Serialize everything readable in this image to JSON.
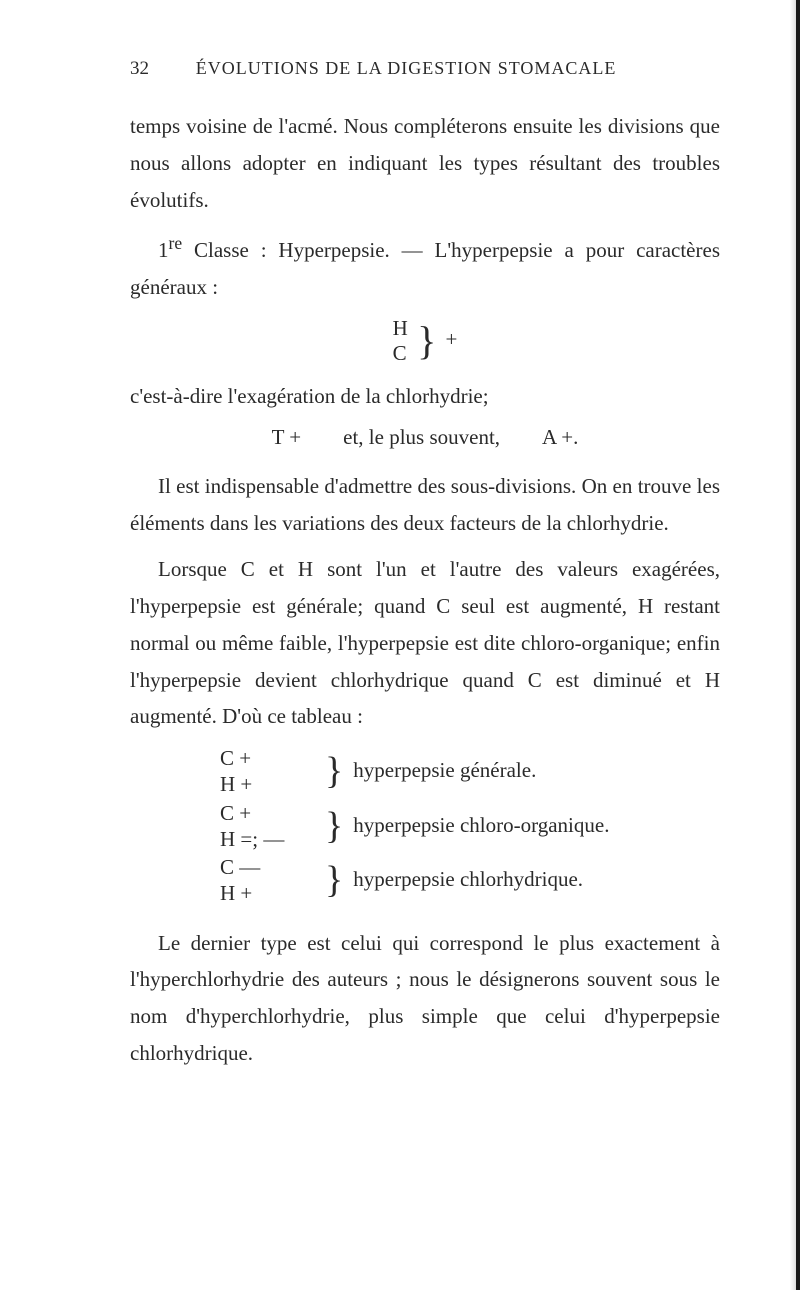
{
  "header": {
    "page_number": "32",
    "running_title": "ÉVOLUTIONS DE LA DIGESTION STOMACALE"
  },
  "para1": "temps voisine de l'acmé. Nous compléterons ensuite les divisions que nous allons adopter en indiquant les types résultant des troubles évolutifs.",
  "para2_prefix": "1",
  "para2_super": "re",
  "para2_rest": " Classe : Hyperpepsie. — L'hyperpepsie a pour caractères généraux :",
  "formula1": {
    "top": "H",
    "bottom": "C",
    "right": "+"
  },
  "para3": "c'est-à-dire l'exagération de la chlorhydrie;",
  "center1": "T +  et, le plus souvent,  A +.",
  "para4": "Il est indispensable d'admettre des sous-divisions. On en trouve les éléments dans les variations des deux facteurs de la chlorhydrie.",
  "para5": "Lorsque C et H sont l'un et l'autre des valeurs exagérées, l'hyperpepsie est générale; quand C seul est augmenté, H restant normal ou même faible, l'hyperpepsie est dite chloro-organique; enfin l'hyperpepsie devient chlorhydrique quand C est diminué et H augmenté. D'où ce tableau :",
  "list": {
    "row1": {
      "l1": "C +",
      "l2": "H +",
      "right": "hyperpepsie générale."
    },
    "row2": {
      "l1": "C +",
      "l2": "H =; —",
      "right": "hyperpepsie chloro-organique."
    },
    "row3": {
      "l1": "C —",
      "l2": "H +",
      "right": "hyperpepsie chlorhydrique."
    }
  },
  "para6": "Le dernier type est celui qui correspond le plus exactement à l'hyperchlorhydrie des auteurs ; nous le désignerons souvent sous le nom d'hyperchlorhydrie, plus simple que celui d'hyperpepsie chlorhydrique."
}
